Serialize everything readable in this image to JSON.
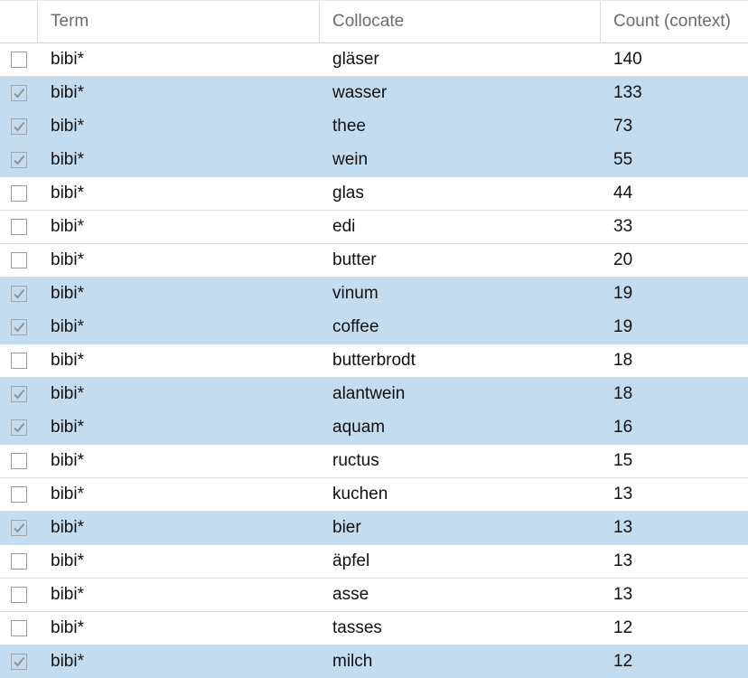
{
  "table": {
    "columns": {
      "term": "Term",
      "collocate": "Collocate",
      "count": "Count (context)"
    },
    "rows": [
      {
        "term": "bibi*",
        "collocate": "gläser",
        "count": "140",
        "selected": false
      },
      {
        "term": "bibi*",
        "collocate": "wasser",
        "count": "133",
        "selected": true
      },
      {
        "term": "bibi*",
        "collocate": "thee",
        "count": "73",
        "selected": true
      },
      {
        "term": "bibi*",
        "collocate": "wein",
        "count": "55",
        "selected": true
      },
      {
        "term": "bibi*",
        "collocate": "glas",
        "count": "44",
        "selected": false
      },
      {
        "term": "bibi*",
        "collocate": "edi",
        "count": "33",
        "selected": false
      },
      {
        "term": "bibi*",
        "collocate": "butter",
        "count": "20",
        "selected": false
      },
      {
        "term": "bibi*",
        "collocate": "vinum",
        "count": "19",
        "selected": true
      },
      {
        "term": "bibi*",
        "collocate": "coffee",
        "count": "19",
        "selected": true
      },
      {
        "term": "bibi*",
        "collocate": "butterbrodt",
        "count": "18",
        "selected": false
      },
      {
        "term": "bibi*",
        "collocate": "alantwein",
        "count": "18",
        "selected": true
      },
      {
        "term": "bibi*",
        "collocate": "aquam",
        "count": "16",
        "selected": true
      },
      {
        "term": "bibi*",
        "collocate": "ructus",
        "count": "15",
        "selected": false
      },
      {
        "term": "bibi*",
        "collocate": "kuchen",
        "count": "13",
        "selected": false
      },
      {
        "term": "bibi*",
        "collocate": "bier",
        "count": "13",
        "selected": true
      },
      {
        "term": "bibi*",
        "collocate": "äpfel",
        "count": "13",
        "selected": false
      },
      {
        "term": "bibi*",
        "collocate": "asse",
        "count": "13",
        "selected": false
      },
      {
        "term": "bibi*",
        "collocate": "tasses",
        "count": "12",
        "selected": false
      },
      {
        "term": "bibi*",
        "collocate": "milch",
        "count": "12",
        "selected": true
      }
    ]
  },
  "colors": {
    "selected_row": "#c4dcf0",
    "header_text": "#6b6b6b",
    "checkbox_border": "#9a9a9a"
  },
  "icons": {
    "row_checkbox": "checkbox-icon",
    "checkmark": "checkmark-icon"
  }
}
